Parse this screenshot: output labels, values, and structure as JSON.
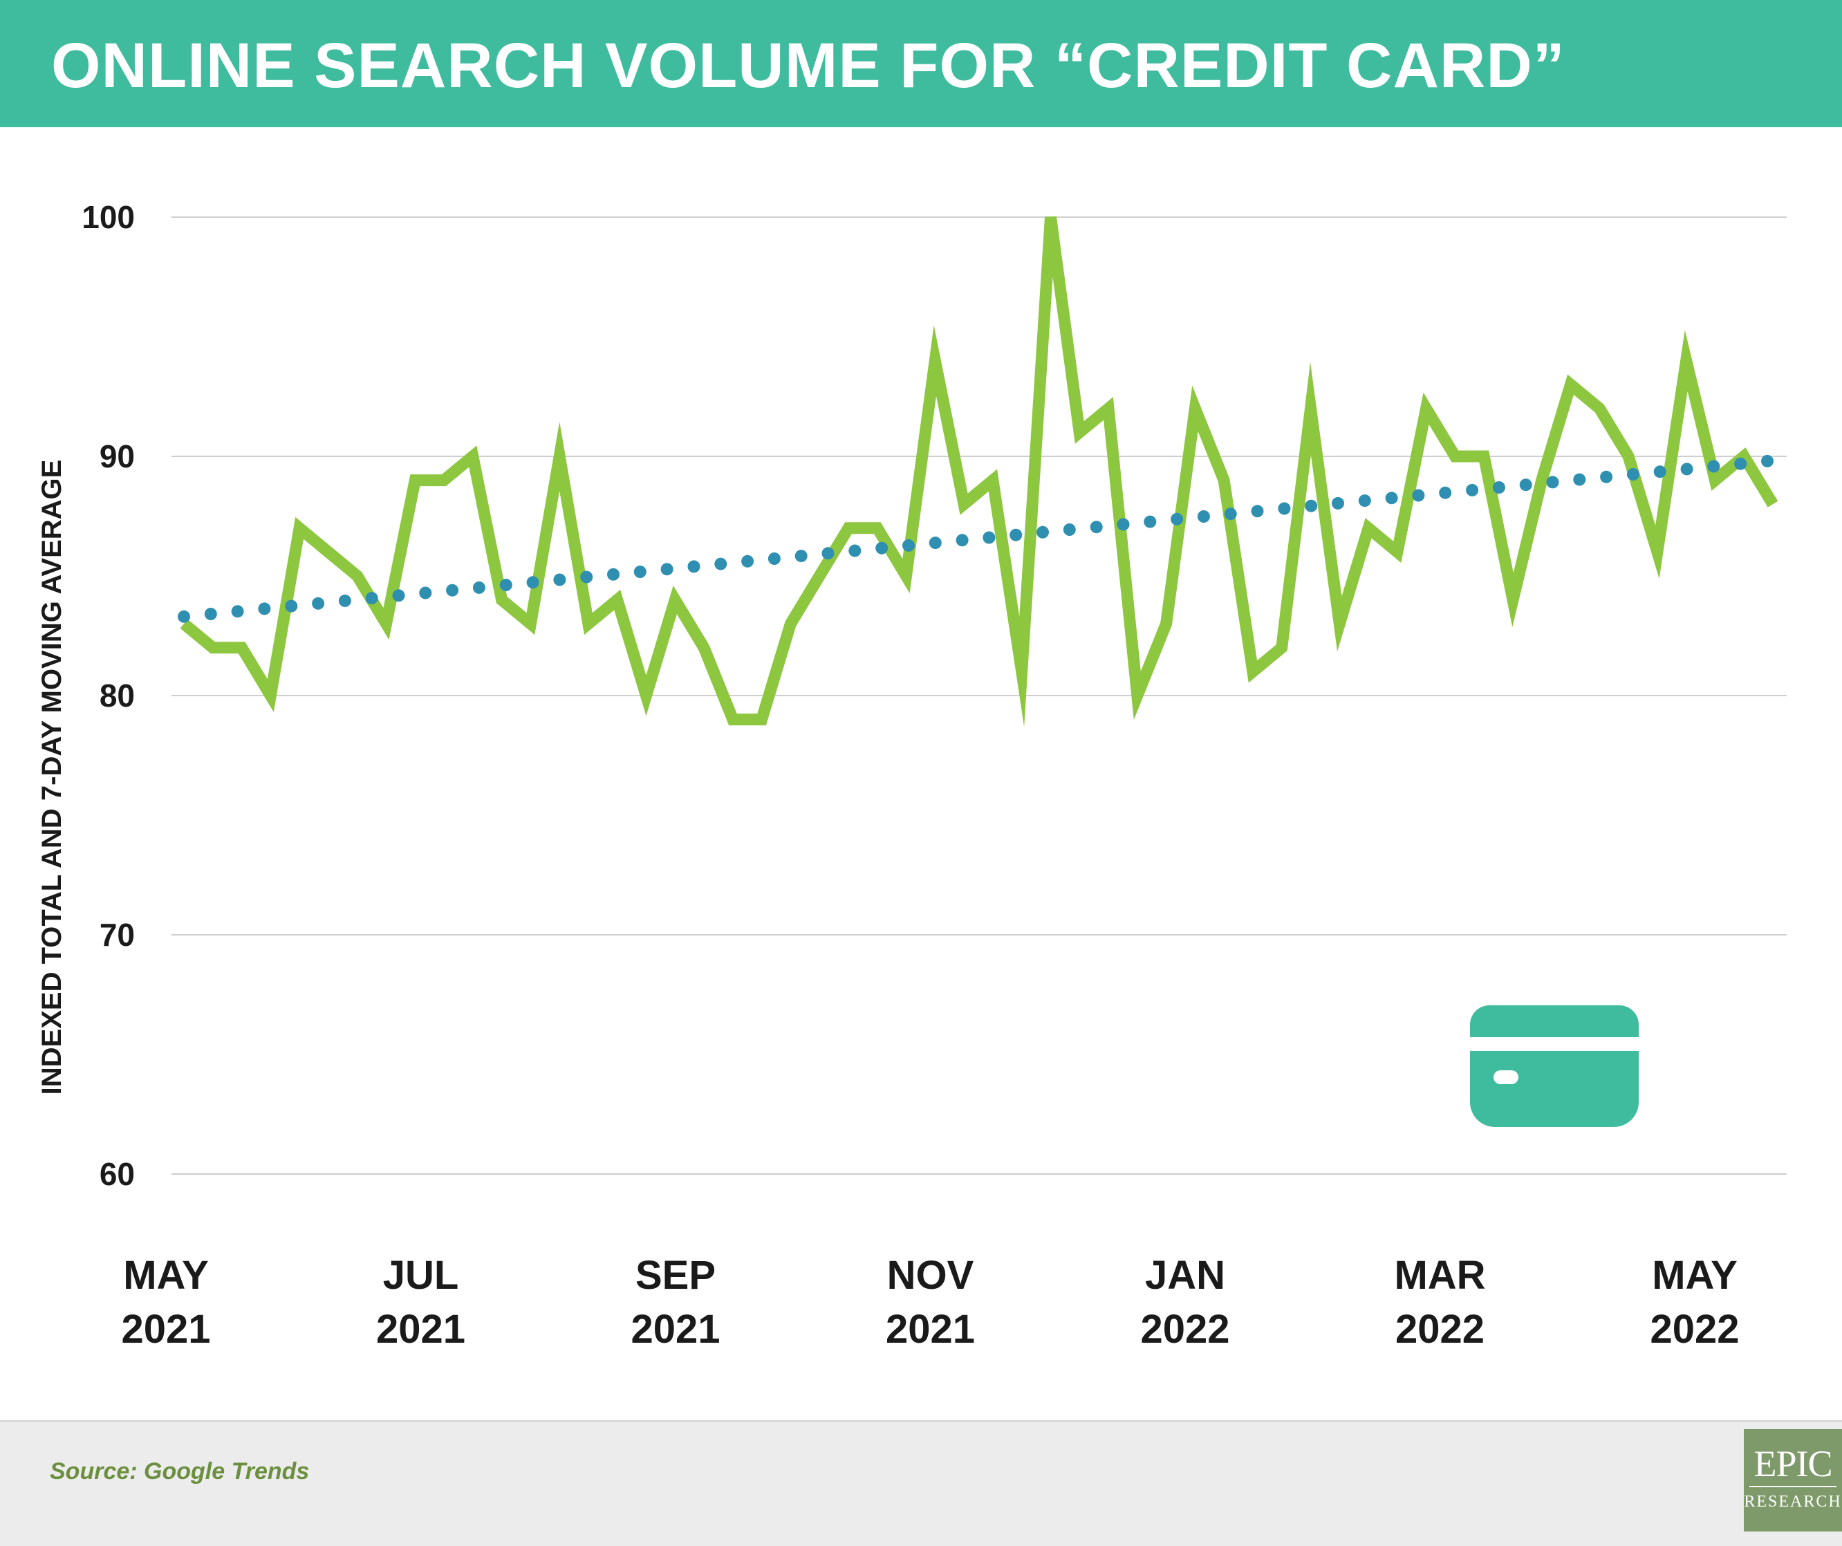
{
  "header": {
    "title": "ONLINE SEARCH VOLUME FOR “CREDIT CARD”"
  },
  "footer": {
    "source": "Source: Google Trends",
    "logo_top": "EPIC",
    "logo_bottom": "RESEARCH"
  },
  "colors": {
    "header_bg": "#3fbb9e",
    "total_line": "#8dc63f",
    "moving_average": "#2e8fb0",
    "icon": "#3fbb9e",
    "source_text": "#6b8f3e"
  },
  "chart_data": {
    "type": "line",
    "title": "ONLINE SEARCH VOLUME FOR “CREDIT CARD”",
    "ylabel": "INDEXED TOTAL AND 7-DAY MOVING AVERAGE",
    "xlabel": "",
    "ylim": [
      60,
      100
    ],
    "yticks": [
      100,
      90,
      80,
      70,
      60
    ],
    "grid": true,
    "x_tick_labels": [
      {
        "month": "MAY",
        "year": "2021"
      },
      {
        "month": "JUL",
        "year": "2021"
      },
      {
        "month": "SEP",
        "year": "2021"
      },
      {
        "month": "NOV",
        "year": "2021"
      },
      {
        "month": "JAN",
        "year": "2022"
      },
      {
        "month": "MAR",
        "year": "2022"
      },
      {
        "month": "MAY",
        "year": "2022"
      }
    ],
    "series": [
      {
        "style": "solid",
        "values": [
          83,
          82,
          82,
          80,
          87,
          86,
          85,
          83,
          89,
          89,
          90,
          84,
          83,
          90,
          83,
          84,
          80,
          84,
          82,
          79,
          79,
          83,
          85,
          87,
          87,
          85,
          94,
          88,
          89,
          81,
          100,
          91,
          92,
          80,
          83,
          92,
          89,
          81,
          82,
          92,
          83,
          87,
          86,
          92,
          90,
          90,
          84,
          89,
          93,
          92,
          90,
          86,
          94,
          89,
          90,
          88
        ]
      },
      {
        "style": "dotted",
        "values": [
          83.3,
          89.8
        ]
      }
    ]
  }
}
